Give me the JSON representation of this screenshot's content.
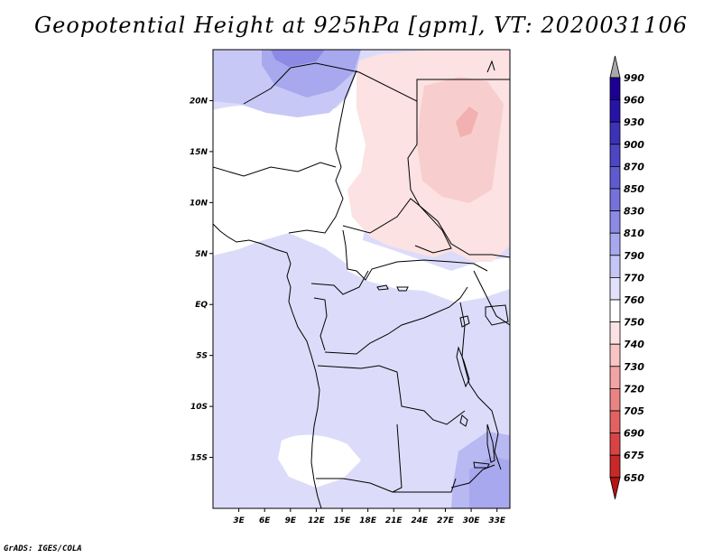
{
  "title": "Geopotential Height at 925hPa [gpm], VT: 2020031106",
  "footer": "GrADS: IGES/COLA",
  "map": {
    "lat_labels": [
      "20N",
      "15N",
      "10N",
      "5N",
      "EQ",
      "5S",
      "10S",
      "15S"
    ],
    "lon_labels": [
      "3E",
      "6E",
      "9E",
      "12E",
      "15E",
      "18E",
      "21E",
      "24E",
      "27E",
      "30E",
      "33E"
    ],
    "lat_range": [
      -20,
      25
    ],
    "lon_range": [
      0,
      34.5
    ]
  },
  "legend": {
    "levels": [
      "990",
      "960",
      "930",
      "900",
      "870",
      "850",
      "830",
      "810",
      "790",
      "770",
      "760",
      "750",
      "740",
      "730",
      "720",
      "705",
      "690",
      "675",
      "650"
    ],
    "colors": [
      "#1c0096",
      "#2614a8",
      "#3c32b8",
      "#4c46c4",
      "#5e5ad0",
      "#7572dc",
      "#8c8ae4",
      "#a8a8ee",
      "#c6c6f6",
      "#e2e2fc",
      "#ffffff",
      "#fce2e2",
      "#f8c4c4",
      "#f2a4a4",
      "#ea8484",
      "#e26262",
      "#d84444",
      "#c82828",
      "#b41414"
    ],
    "top_color": "#a8a8a8",
    "bottom_color": "#b41414"
  }
}
